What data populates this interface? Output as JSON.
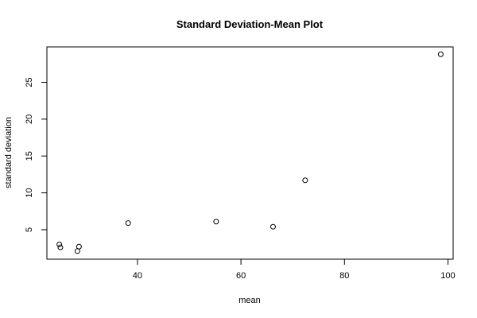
{
  "chart_data": {
    "type": "scatter",
    "title": "Standard Deviation-Mean Plot",
    "xlabel": "mean",
    "ylabel": "standard deviation",
    "xlim": [
      22.5,
      101
    ],
    "ylim": [
      1.0,
      29.8
    ],
    "x_ticks": [
      40,
      60,
      80,
      100
    ],
    "y_ticks": [
      5,
      10,
      15,
      20,
      25
    ],
    "grid": false,
    "legend": "none",
    "points": [
      {
        "x": 24.9,
        "y": 3.0
      },
      {
        "x": 25.1,
        "y": 2.6
      },
      {
        "x": 28.4,
        "y": 2.1
      },
      {
        "x": 28.7,
        "y": 2.7
      },
      {
        "x": 38.2,
        "y": 5.9
      },
      {
        "x": 55.2,
        "y": 6.1
      },
      {
        "x": 66.2,
        "y": 5.4
      },
      {
        "x": 72.4,
        "y": 11.7
      },
      {
        "x": 98.6,
        "y": 28.8
      }
    ]
  }
}
